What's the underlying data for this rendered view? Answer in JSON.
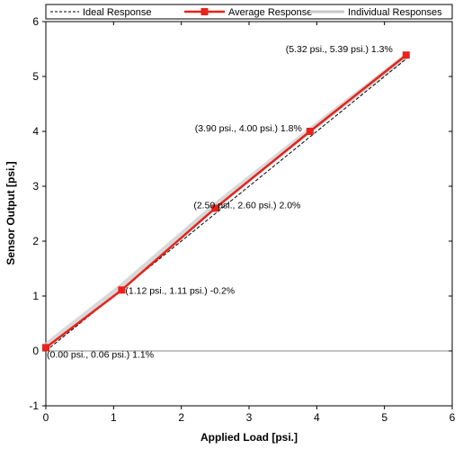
{
  "chart_data": {
    "type": "line",
    "xlabel": "Applied Load [psi.]",
    "ylabel": "Sensor Output [psi.]",
    "xlim": [
      0,
      6
    ],
    "ylim": [
      -1,
      6
    ],
    "xticks": [
      0,
      1,
      2,
      3,
      4,
      5,
      6
    ],
    "yticks": [
      -1,
      0,
      1,
      2,
      3,
      4,
      5,
      6
    ],
    "grid": false,
    "legend_position": "top",
    "series": [
      {
        "name": "Ideal Response",
        "style": "dashed",
        "color": "#000000",
        "x": [
          0,
          5.32
        ],
        "y": [
          0,
          5.32
        ]
      },
      {
        "name": "Average Response",
        "style": "solid-square-markers",
        "color": "#e8221b",
        "x": [
          0.0,
          1.12,
          2.5,
          3.9,
          5.32
        ],
        "y": [
          0.06,
          1.11,
          2.6,
          4.0,
          5.39
        ]
      },
      {
        "name": "Individual Responses",
        "style": "solid-light",
        "color": "#c8c8c8",
        "x": [
          0.0,
          1.12,
          2.5,
          3.9,
          5.32
        ],
        "y": [
          0.1,
          1.18,
          2.65,
          4.02,
          5.37
        ]
      }
    ],
    "annotations": [
      {
        "x": 0.0,
        "y": 0.06,
        "text": "(0.00 psi., 0.06 psi.) 1.1%"
      },
      {
        "x": 1.12,
        "y": 1.11,
        "text": "(1.12 psi., 1.11 psi.) -0.2%"
      },
      {
        "x": 2.5,
        "y": 2.6,
        "text": "(2.50 psi., 2.60 psi.) 2.0%"
      },
      {
        "x": 3.9,
        "y": 4.0,
        "text": "(3.90 psi., 4.00 psi.) 1.8%"
      },
      {
        "x": 5.32,
        "y": 5.39,
        "text": "(5.32 psi., 5.39 psi.) 1.3%"
      }
    ]
  }
}
